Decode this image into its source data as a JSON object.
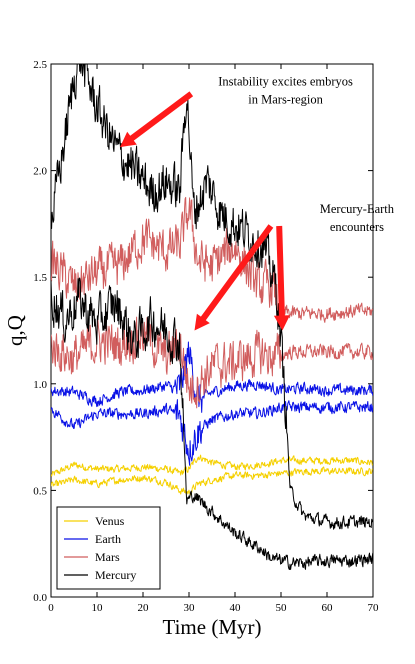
{
  "chart_data": {
    "type": "line",
    "title": "",
    "xlabel": "Time (Myr)",
    "ylabel": "q,Q",
    "xlim": [
      0,
      70
    ],
    "ylim": [
      0,
      2.5
    ],
    "xticks": [
      0,
      10,
      20,
      30,
      40,
      50,
      60,
      70
    ],
    "yticks": [
      0.0,
      0.5,
      1.0,
      1.5,
      2.0,
      2.5
    ],
    "xtick_labels": [
      "0",
      "10",
      "20",
      "30",
      "40",
      "50",
      "60",
      "70"
    ],
    "ytick_labels": [
      "0.0",
      "0.5",
      "1.0",
      "1.5",
      "2.0",
      "2.5"
    ],
    "grid": false,
    "legend": {
      "placement": "bottom-left",
      "entries": [
        "Venus",
        "Earth",
        "Mars",
        "Mercury"
      ]
    },
    "series": [
      {
        "name": "Venus",
        "color": "#f5d000",
        "curves": [
          {
            "x": [
              0,
              5,
              10,
              15,
              20,
              25,
              28,
              30,
              32,
              35,
              40,
              45,
              50,
              55,
              60,
              65,
              70
            ],
            "y": [
              0.57,
              0.62,
              0.6,
              0.6,
              0.61,
              0.6,
              0.58,
              0.6,
              0.66,
              0.63,
              0.61,
              0.62,
              0.64,
              0.64,
              0.64,
              0.64,
              0.63
            ]
          },
          {
            "x": [
              0,
              5,
              10,
              15,
              20,
              25,
              28,
              30,
              32,
              35,
              40,
              45,
              50,
              55,
              60,
              65,
              70
            ],
            "y": [
              0.52,
              0.55,
              0.53,
              0.55,
              0.56,
              0.54,
              0.5,
              0.49,
              0.53,
              0.55,
              0.57,
              0.57,
              0.58,
              0.59,
              0.59,
              0.59,
              0.59
            ]
          }
        ]
      },
      {
        "name": "Earth",
        "color": "#0a12e6",
        "curves": [
          {
            "x": [
              0,
              5,
              10,
              15,
              20,
              25,
              28,
              30,
              32,
              35,
              40,
              45,
              50,
              55,
              60,
              65,
              70
            ],
            "y": [
              0.97,
              0.96,
              0.92,
              0.96,
              0.97,
              0.99,
              0.97,
              1.15,
              0.92,
              0.96,
              0.99,
              1.0,
              0.97,
              0.98,
              0.97,
              0.97,
              0.97
            ]
          },
          {
            "x": [
              0,
              5,
              10,
              15,
              20,
              25,
              28,
              30,
              32,
              35,
              40,
              45,
              50,
              55,
              60,
              65,
              70
            ],
            "y": [
              0.88,
              0.8,
              0.86,
              0.86,
              0.86,
              0.88,
              0.85,
              0.7,
              0.78,
              0.83,
              0.86,
              0.86,
              0.89,
              0.89,
              0.89,
              0.89,
              0.89
            ]
          }
        ]
      },
      {
        "name": "Mars",
        "color": "#d15e5e",
        "curves": [
          {
            "x": [
              0,
              5,
              10,
              15,
              20,
              25,
              28,
              30,
              32,
              35,
              40,
              45,
              48,
              50,
              52,
              55,
              60,
              65,
              70
            ],
            "y": [
              1.58,
              1.45,
              1.52,
              1.55,
              1.68,
              1.62,
              1.65,
              1.82,
              1.58,
              1.55,
              1.65,
              1.45,
              1.46,
              1.34,
              1.33,
              1.33,
              1.33,
              1.34,
              1.34
            ]
          },
          {
            "x": [
              0,
              5,
              10,
              15,
              20,
              25,
              28,
              30,
              32,
              35,
              40,
              45,
              48,
              50,
              52,
              55,
              60,
              65,
              70
            ],
            "y": [
              1.18,
              1.12,
              1.2,
              1.18,
              1.24,
              1.12,
              1.2,
              0.98,
              1.0,
              1.08,
              1.1,
              1.14,
              1.13,
              1.13,
              1.15,
              1.15,
              1.15,
              1.15,
              1.15
            ]
          }
        ]
      },
      {
        "name": "Mercury",
        "color": "#000000",
        "curves": [
          {
            "x": [
              0,
              3,
              6,
              10,
              14,
              18,
              22,
              25,
              28,
              29.5,
              31,
              34,
              37,
              40,
              43,
              46,
              49,
              50,
              51,
              52,
              55,
              60,
              65,
              70
            ],
            "y": [
              1.75,
              2.15,
              2.55,
              2.3,
              2.1,
              2.0,
              1.9,
              1.95,
              1.9,
              2.4,
              1.8,
              1.95,
              1.8,
              1.75,
              1.7,
              1.65,
              1.45,
              1.2,
              0.9,
              0.5,
              0.38,
              0.35,
              0.35,
              0.35
            ]
          },
          {
            "x": [
              0,
              3,
              6,
              10,
              14,
              18,
              22,
              25,
              28,
              29.5,
              31,
              34,
              37,
              40,
              43,
              46,
              48,
              50,
              52,
              55,
              60,
              65,
              70
            ],
            "y": [
              1.42,
              1.3,
              1.4,
              1.28,
              1.38,
              1.2,
              1.3,
              1.25,
              1.2,
              0.45,
              0.48,
              0.42,
              0.36,
              0.3,
              0.26,
              0.22,
              0.18,
              0.17,
              0.16,
              0.16,
              0.17,
              0.17,
              0.18
            ]
          }
        ]
      }
    ],
    "annotations": [
      {
        "lines": [
          "Instability excites embryos",
          "in Mars-region"
        ],
        "text_xy": [
          51,
          2.4
        ],
        "arrows": [
          {
            "from": [
              30.5,
              2.36
            ],
            "to": [
              15.0,
              2.11
            ]
          }
        ]
      },
      {
        "lines": [
          "Mercury-Earth",
          "encounters"
        ],
        "text_xy": [
          66.5,
          1.8
        ],
        "arrows": [
          {
            "from": [
              47.8,
              1.74
            ],
            "to": [
              31.2,
              1.25
            ]
          },
          {
            "from": [
              49.6,
              1.74
            ],
            "to": [
              50.3,
              1.25
            ]
          }
        ]
      }
    ]
  }
}
